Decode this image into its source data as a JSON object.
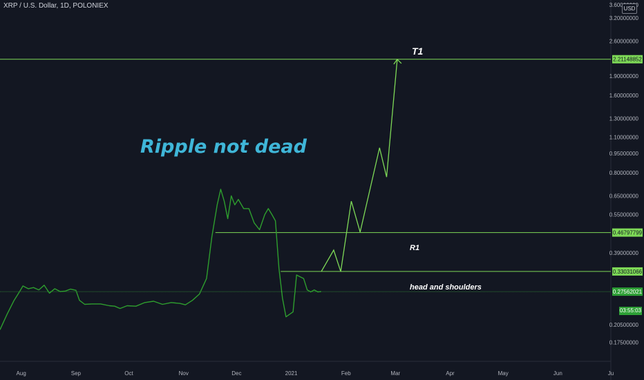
{
  "header": {
    "symbol": "XRP / U.S. Dollar, 1D, POLONIEX",
    "currency": "USD"
  },
  "colors": {
    "background": "#131722",
    "price_line": "#2e9e2e",
    "drawing": "#7ed957",
    "annotation_title": "#3fb6d8",
    "axis_text": "#b2b5be",
    "label_bg": "#7ed957",
    "last_price_bg": "#2ea036"
  },
  "annotations": {
    "title": "Ripple not dead",
    "t1": "T1",
    "r1": "R1",
    "pattern": "head and shoulders"
  },
  "countdown": "03:55:03",
  "chart_data": {
    "type": "line",
    "yscale": "log",
    "ylim": [
      0.16,
      3.6
    ],
    "x_axis": {
      "start_date": "2020-07-20",
      "end_date": "2021-07-01",
      "ticks": [
        {
          "date": "2020-08-01",
          "label": "Aug"
        },
        {
          "date": "2020-09-01",
          "label": "Sep"
        },
        {
          "date": "2020-10-01",
          "label": "Oct"
        },
        {
          "date": "2020-11-01",
          "label": "Nov"
        },
        {
          "date": "2020-12-01",
          "label": "Dec"
        },
        {
          "date": "2021-01-01",
          "label": "2021"
        },
        {
          "date": "2021-02-01",
          "label": "Feb"
        },
        {
          "date": "2021-03-01",
          "label": "Mar"
        },
        {
          "date": "2021-04-01",
          "label": "Apr"
        },
        {
          "date": "2021-05-01",
          "label": "May"
        },
        {
          "date": "2021-06-01",
          "label": "Jun"
        },
        {
          "date": "2021-07-01",
          "label": "Ju"
        }
      ]
    },
    "y_ticks": [
      "3.60000000",
      "3.20000000",
      "2.60000000",
      "1.90000000",
      "1.60000000",
      "1.30000000",
      "1.10000000",
      "0.95000000",
      "0.80000000",
      "0.65000000",
      "0.55000000",
      "0.39000000",
      "0.20500000",
      "0.17500000"
    ],
    "y_tick_values": [
      3.6,
      3.2,
      2.6,
      1.9,
      1.6,
      1.3,
      1.1,
      0.95,
      0.8,
      0.65,
      0.55,
      0.39,
      0.205,
      0.175
    ],
    "price_labels": [
      {
        "value": 2.21148852,
        "label": "2.21148852"
      },
      {
        "value": 0.46797799,
        "label": "0.46797799"
      },
      {
        "value": 0.33031066,
        "label": "0.33031066"
      },
      {
        "value": 0.27562021,
        "label": "0.27562021"
      }
    ],
    "series": [
      {
        "x": [
          "2020-07-20",
          "2020-07-24",
          "2020-07-28",
          "2020-07-31",
          "2020-08-02",
          "2020-08-05",
          "2020-08-08",
          "2020-08-11",
          "2020-08-14",
          "2020-08-17",
          "2020-08-20",
          "2020-08-23",
          "2020-08-26",
          "2020-08-29",
          "2020-09-01",
          "2020-09-03",
          "2020-09-06",
          "2020-09-10",
          "2020-09-15",
          "2020-09-20",
          "2020-09-23",
          "2020-09-26",
          "2020-09-30",
          "2020-10-05",
          "2020-10-10",
          "2020-10-15",
          "2020-10-20",
          "2020-10-25",
          "2020-10-30",
          "2020-11-02",
          "2020-11-06",
          "2020-11-10",
          "2020-11-14",
          "2020-11-17",
          "2020-11-20",
          "2020-11-22",
          "2020-11-24",
          "2020-11-26",
          "2020-11-28",
          "2020-11-30",
          "2020-12-02",
          "2020-12-05",
          "2020-12-08",
          "2020-12-11",
          "2020-12-14",
          "2020-12-17",
          "2020-12-19",
          "2020-12-21",
          "2020-12-23",
          "2020-12-25",
          "2020-12-27",
          "2020-12-29",
          "2020-12-31",
          "2021-01-02",
          "2021-01-04",
          "2021-01-06",
          "2021-01-08",
          "2021-01-10",
          "2021-01-12",
          "2021-01-14",
          "2021-01-16",
          "2021-01-18"
        ],
        "values": [
          0.196,
          0.225,
          0.255,
          0.275,
          0.29,
          0.283,
          0.286,
          0.28,
          0.292,
          0.272,
          0.283,
          0.276,
          0.277,
          0.282,
          0.279,
          0.255,
          0.246,
          0.247,
          0.247,
          0.243,
          0.242,
          0.237,
          0.243,
          0.242,
          0.25,
          0.253,
          0.246,
          0.25,
          0.248,
          0.245,
          0.255,
          0.27,
          0.31,
          0.45,
          0.6,
          0.69,
          0.62,
          0.53,
          0.65,
          0.6,
          0.63,
          0.58,
          0.58,
          0.51,
          0.48,
          0.55,
          0.58,
          0.55,
          0.52,
          0.34,
          0.26,
          0.22,
          0.225,
          0.23,
          0.32,
          0.315,
          0.31,
          0.28,
          0.275,
          0.28,
          0.275,
          0.276
        ]
      }
    ],
    "levels": [
      {
        "name": "T1",
        "value": 2.21148852,
        "from": "2020-07-20"
      },
      {
        "name": "R1",
        "value": 0.46797799,
        "from": "2020-11-19"
      },
      {
        "name": "head and shoulders",
        "value": 0.33031066,
        "from": "2020-12-26"
      },
      {
        "name": "last",
        "value": 0.27562021,
        "from": "2020-07-20"
      }
    ],
    "projection": {
      "x": [
        "2021-01-18",
        "2021-01-25",
        "2021-01-29",
        "2021-02-04",
        "2021-02-09",
        "2021-02-20",
        "2021-02-24",
        "2021-03-02"
      ],
      "values": [
        0.33,
        0.4,
        0.33,
        0.62,
        0.47,
        1.0,
        0.77,
        2.21
      ]
    }
  }
}
